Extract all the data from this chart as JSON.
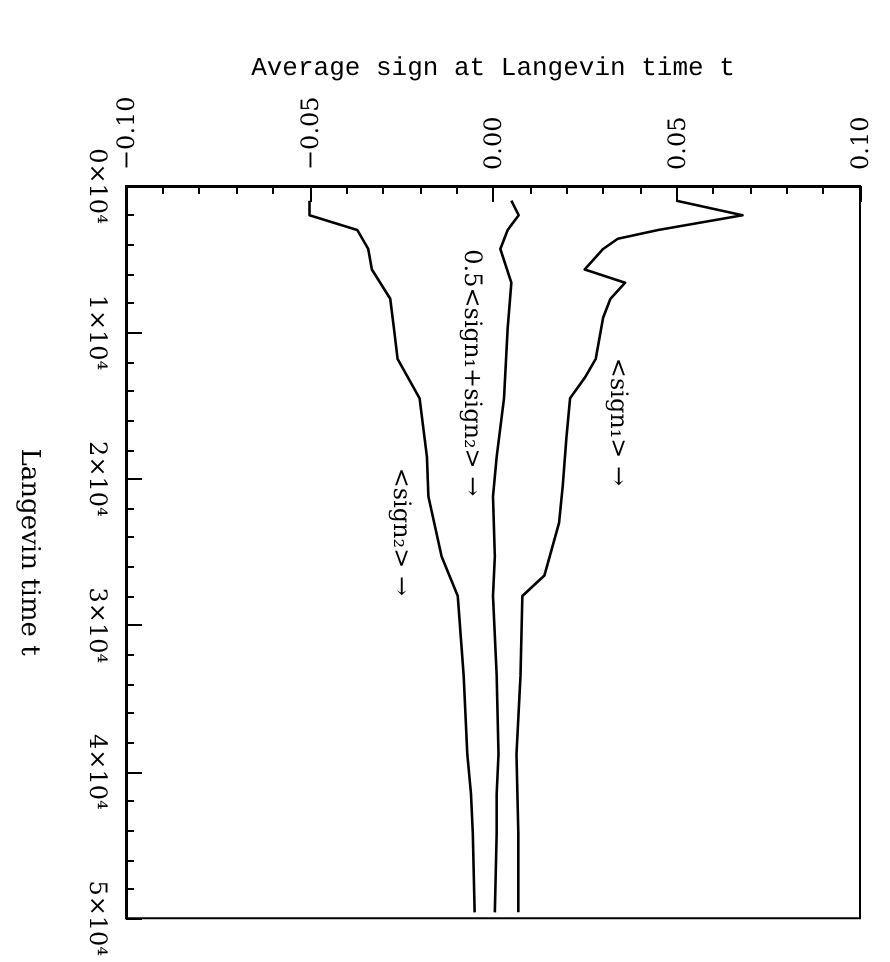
{
  "chart_data": {
    "type": "line",
    "orientation": "horizontal",
    "xlabel": "Average sign at Langevin time t",
    "ylabel": "Langevin time t",
    "xlim": [
      -0.1,
      0.1
    ],
    "ylim": [
      50000,
      0
    ],
    "yticks": [
      {
        "value": 0,
        "label": "0×10⁴"
      },
      {
        "value": 10000,
        "label": "1×10⁴"
      },
      {
        "value": 20000,
        "label": "2×10⁴"
      },
      {
        "value": 30000,
        "label": "3×10⁴"
      },
      {
        "value": 40000,
        "label": "4×10⁴"
      },
      {
        "value": 50000,
        "label": "5×10⁴"
      }
    ],
    "xticks": [
      {
        "value": -0.1,
        "label": "−0.10"
      },
      {
        "value": -0.05,
        "label": "−0.05"
      },
      {
        "value": 0,
        "label": "0.00"
      },
      {
        "value": 0.05,
        "label": "0.05"
      },
      {
        "value": 0.1,
        "label": "0.10"
      }
    ],
    "series": [
      {
        "color": "#000000",
        "x": [
          1000,
          2000,
          3000,
          3600,
          4300,
          5700,
          6600,
          7700,
          9000,
          11800,
          13100,
          14500,
          17200,
          20500,
          23000,
          26600,
          28000,
          33400,
          38800,
          44200,
          49600
        ],
        "values": [
          0.05,
          0.068,
          0.045,
          0.034,
          0.03,
          0.025,
          0.036,
          0.032,
          0.03,
          0.028,
          0.025,
          0.021,
          0.02,
          0.019,
          0.018,
          0.014,
          0.008,
          0.0075,
          0.0064,
          0.0069,
          0.0069
        ]
      },
      {
        "color": "#000000",
        "x": [
          1000,
          2000,
          3000,
          4300,
          6600,
          9700,
          14500,
          18500,
          21200,
          25300,
          28000,
          33400,
          38800,
          41500,
          44200,
          49600
        ],
        "values": [
          0.005,
          0.007,
          0.004,
          0.002,
          0.005,
          0.004,
          0.003,
          0.001,
          0,
          0.0005,
          0,
          0.001,
          0.0015,
          0.001,
          0.001,
          0.0005
        ]
      },
      {
        "color": "#000000",
        "x": [
          1000,
          2000,
          3000,
          4300,
          5700,
          7700,
          9700,
          11800,
          14500,
          18500,
          21200,
          25300,
          28000,
          33400,
          38800,
          41500,
          44200,
          49600
        ],
        "values": [
          -0.05,
          -0.05,
          -0.037,
          -0.034,
          -0.033,
          -0.028,
          -0.027,
          -0.026,
          -0.02,
          -0.018,
          -0.0176,
          -0.014,
          -0.0096,
          -0.008,
          -0.007,
          -0.006,
          -0.0055,
          -0.005
        ]
      }
    ],
    "annotations": [
      {
        "text": "0.5<sign₁+sign₂> →",
        "x": 0,
        "y": 21200
      },
      {
        "text": "<sign₁> →",
        "x": 0.019,
        "y": 20500
      },
      {
        "text": "<sign₂> →",
        "x": -0.0096,
        "y": 28000
      }
    ],
    "grid": false,
    "marker": "none",
    "line_style": "solid"
  }
}
